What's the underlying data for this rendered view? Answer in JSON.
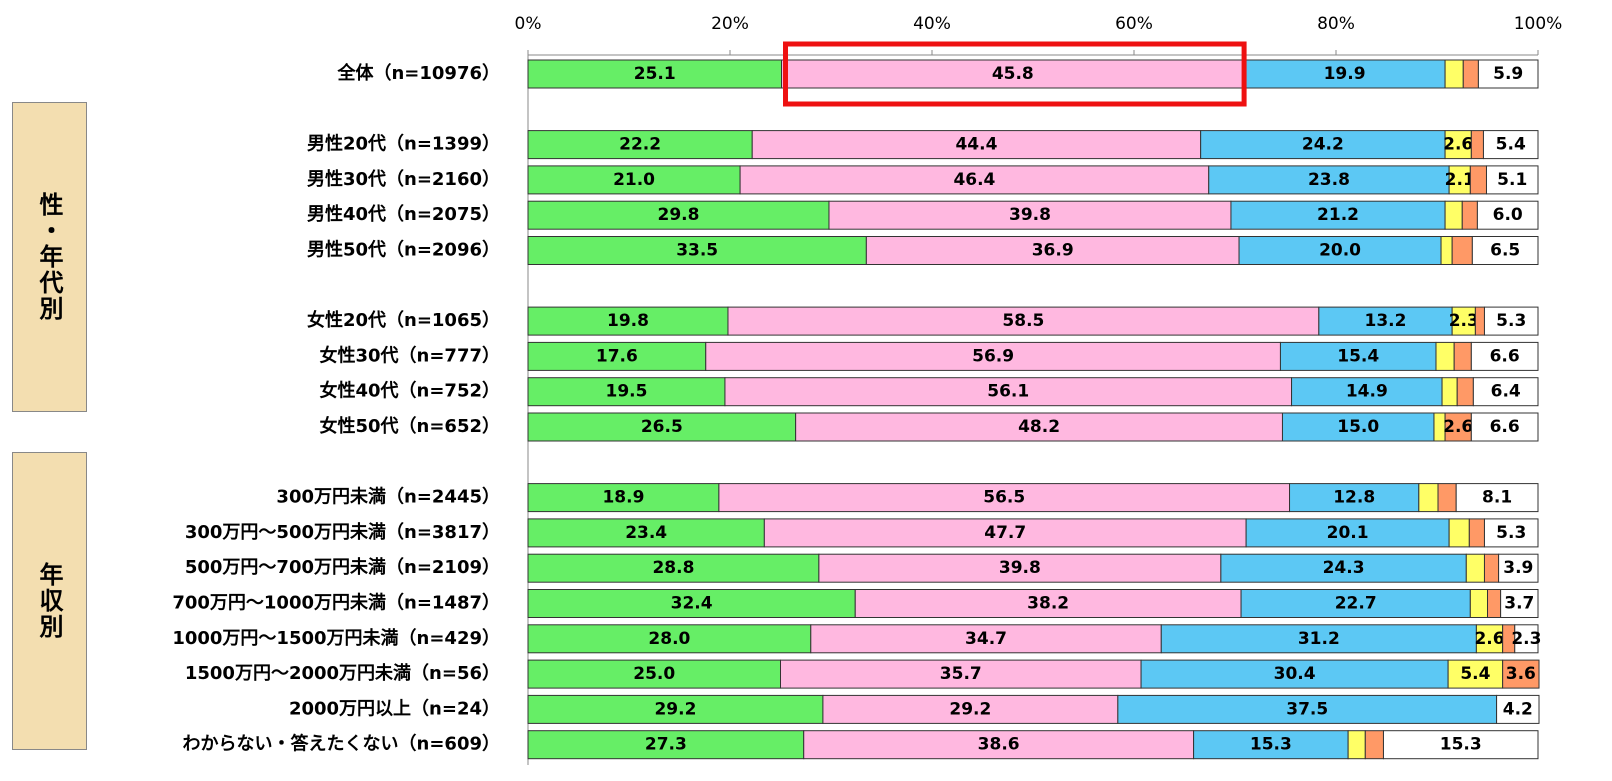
{
  "chart_data": {
    "type": "stacked-bar-horizontal",
    "categories": [
      "全体（n=10976）",
      "男性20代（n=1399）",
      "男性30代（n=2160）",
      "男性40代（n=2075）",
      "男性50代（n=2096）",
      "女性20代（n=1065）",
      "女性30代（n=777）",
      "女性40代（n=752）",
      "女性50代（n=652）",
      "300万円未満（n=2445）",
      "300万円～500万円未満（n=3817）",
      "500万円～700万円未満（n=2109）",
      "700万円～1000万円未満（n=1487）",
      "1000万円～1500万円未満（n=429）",
      "1500万円～2000万円未満（n=56）",
      "2000万円以上（n=24）",
      "わからない・答えたくない（n=609）"
    ],
    "group_labels": [
      "性・年代別",
      "年収別"
    ],
    "series": [
      {
        "color": "#66ee66",
        "values": [
          25.1,
          22.2,
          21.0,
          29.8,
          33.5,
          19.8,
          17.6,
          19.5,
          26.5,
          18.9,
          23.4,
          28.8,
          32.4,
          28.0,
          25.0,
          29.2,
          27.3
        ],
        "value_labels": [
          "25.1",
          "22.2",
          "21.0",
          "29.8",
          "33.5",
          "19.8",
          "17.6",
          "19.5",
          "26.5",
          "18.9",
          "23.4",
          "28.8",
          "32.4",
          "28.0",
          "25.0",
          "29.2",
          "27.3"
        ]
      },
      {
        "color": "#ffb8e0",
        "values": [
          45.8,
          44.4,
          46.4,
          39.8,
          36.9,
          58.5,
          56.9,
          56.1,
          48.2,
          56.5,
          47.7,
          39.8,
          38.2,
          34.7,
          35.7,
          29.2,
          38.6
        ],
        "value_labels": [
          "45.8",
          "44.4",
          "46.4",
          "39.8",
          "36.9",
          "58.5",
          "56.9",
          "56.1",
          "48.2",
          "56.5",
          "47.7",
          "39.8",
          "38.2",
          "34.7",
          "35.7",
          "29.2",
          "38.6"
        ]
      },
      {
        "color": "#5cc8f4",
        "values": [
          19.9,
          24.2,
          23.8,
          21.2,
          20.0,
          13.2,
          15.4,
          14.9,
          15.0,
          12.8,
          20.1,
          24.3,
          22.7,
          31.2,
          30.4,
          37.5,
          15.3
        ],
        "value_labels": [
          "19.9",
          "24.2",
          "23.8",
          "21.2",
          "20.0",
          "13.2",
          "15.4",
          "14.9",
          "15.0",
          "12.8",
          "20.1",
          "24.3",
          "22.7",
          "31.2",
          "30.4",
          "37.5",
          "15.3"
        ]
      },
      {
        "color": "#ffff66",
        "values": [
          1.8,
          2.6,
          2.1,
          1.7,
          1.1,
          2.3,
          1.8,
          1.5,
          1.1,
          1.9,
          2.0,
          1.8,
          1.7,
          2.6,
          5.4,
          0,
          1.7
        ],
        "value_labels": [
          null,
          "2.6",
          "2.1",
          null,
          null,
          "2.3",
          null,
          null,
          null,
          null,
          null,
          null,
          null,
          "2.6",
          "5.4",
          null,
          null
        ]
      },
      {
        "color": "#ff9966",
        "values": [
          1.5,
          1.2,
          1.6,
          1.5,
          2.0,
          0.9,
          1.7,
          1.6,
          2.6,
          1.8,
          1.5,
          1.4,
          1.3,
          1.2,
          3.6,
          0,
          1.8
        ],
        "value_labels": [
          null,
          null,
          null,
          null,
          null,
          null,
          null,
          null,
          "2.6",
          null,
          null,
          null,
          null,
          null,
          "3.6",
          null,
          null
        ]
      },
      {
        "color": "#ffffff",
        "values": [
          5.9,
          5.4,
          5.1,
          6.0,
          6.5,
          5.3,
          6.6,
          6.4,
          6.6,
          8.1,
          5.3,
          3.9,
          3.7,
          2.3,
          0,
          4.2,
          15.3
        ],
        "value_labels": [
          "5.9",
          "5.4",
          "5.1",
          "6.0",
          "6.5",
          "5.3",
          "6.6",
          "6.4",
          "6.6",
          "8.1",
          "5.3",
          "3.9",
          "3.7",
          "2.3",
          null,
          "4.2",
          "15.3"
        ]
      }
    ],
    "xlim": [
      0,
      100
    ],
    "xticks": [
      {
        "value": 0,
        "label": "0%"
      },
      {
        "value": 20,
        "label": "20%"
      },
      {
        "value": 40,
        "label": "40%"
      },
      {
        "value": 60,
        "label": "60%"
      },
      {
        "value": 80,
        "label": "80%"
      },
      {
        "value": 100,
        "label": "100%"
      }
    ]
  }
}
